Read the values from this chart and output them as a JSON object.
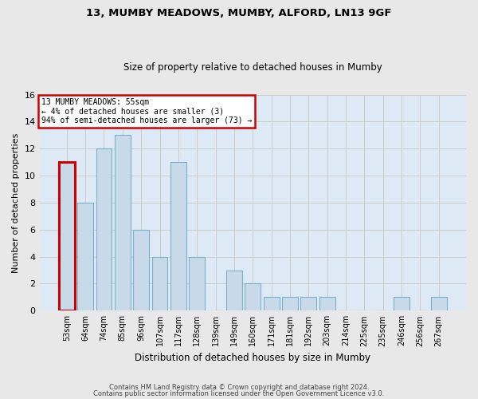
{
  "title1": "13, MUMBY MEADOWS, MUMBY, ALFORD, LN13 9GF",
  "title2": "Size of property relative to detached houses in Mumby",
  "xlabel": "Distribution of detached houses by size in Mumby",
  "ylabel": "Number of detached properties",
  "categories": [
    "53sqm",
    "64sqm",
    "74sqm",
    "85sqm",
    "96sqm",
    "107sqm",
    "117sqm",
    "128sqm",
    "139sqm",
    "149sqm",
    "160sqm",
    "171sqm",
    "181sqm",
    "192sqm",
    "203sqm",
    "214sqm",
    "225sqm",
    "235sqm",
    "246sqm",
    "256sqm",
    "267sqm"
  ],
  "values": [
    11,
    8,
    12,
    13,
    6,
    4,
    11,
    4,
    0,
    3,
    2,
    1,
    1,
    1,
    1,
    0,
    0,
    0,
    1,
    0,
    1
  ],
  "highlight_index": 0,
  "bar_color": "#c8daea",
  "bar_edge_color": "#7aafc8",
  "highlight_edge_color": "#cc0000",
  "grid_color": "#cccccc",
  "bg_color": "#ddeaf5",
  "fig_bg_color": "#e8e8e8",
  "annotation_text": "13 MUMBY MEADOWS: 55sqm\n← 4% of detached houses are smaller (3)\n94% of semi-detached houses are larger (73) →",
  "annotation_box_facecolor": "#ffffff",
  "annotation_box_edgecolor": "#cc0000",
  "footer1": "Contains HM Land Registry data © Crown copyright and database right 2024.",
  "footer2": "Contains public sector information licensed under the Open Government Licence v3.0.",
  "ylim_max": 16,
  "yticks": [
    0,
    2,
    4,
    6,
    8,
    10,
    12,
    14,
    16
  ]
}
